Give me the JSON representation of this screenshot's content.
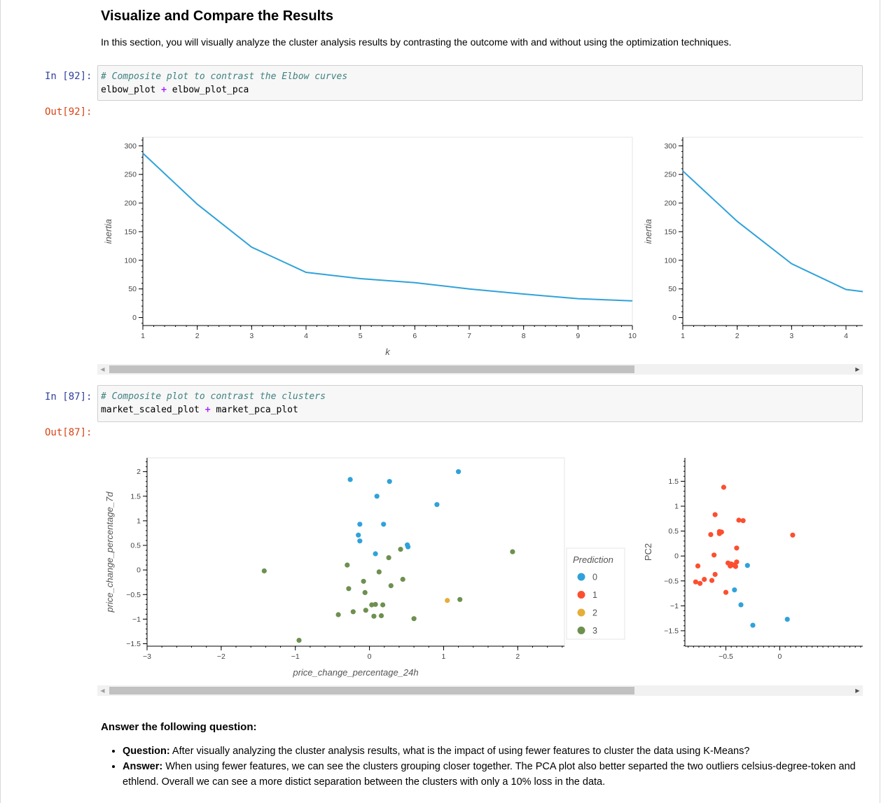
{
  "section": {
    "heading": "Visualize and Compare the Results",
    "intro": "In this section, you will visually analyze the cluster analysis results by contrasting the outcome with and without using the optimization techniques."
  },
  "cells": [
    {
      "in_prompt": "In [92]:",
      "out_prompt": "Out[92]:",
      "comment": "# Composite plot to contrast the Elbow curves",
      "code_left": "elbow_plot",
      "code_op": "+",
      "code_right": "elbow_plot_pca"
    },
    {
      "in_prompt": "In [87]:",
      "out_prompt": "Out[87]:",
      "comment": "# Composite plot to contrast the clusters",
      "code_left": "market_scaled_plot",
      "code_op": "+",
      "code_right": "market_pca_plot"
    }
  ],
  "answer": {
    "title": "Answer the following question:",
    "question_label": "Question:",
    "question_text": " After visually analyzing the cluster analysis results, what is the impact of using fewer features to cluster the data using K-Means?",
    "answer_label": "Answer:",
    "answer_text": " When using fewer features, we can see the clusters grouping closer together. The PCA plot also better separted the two outliers celsius-degree-token and ethlend. Overall we can see a more distict separation between the clusters with only a 10% loss in the data."
  },
  "colors": {
    "line": "#30a2da",
    "cluster_0": "#30a2da",
    "cluster_1": "#fc4f30",
    "cluster_2": "#e5ae38",
    "cluster_3": "#6d904f"
  },
  "chart_data": [
    {
      "type": "line",
      "xlabel": "k",
      "ylabel": "inertia",
      "x": [
        1,
        2,
        3,
        4,
        5,
        6,
        7,
        8,
        9,
        10
      ],
      "y": [
        287,
        198,
        123,
        79,
        68,
        61,
        50,
        41,
        33,
        29
      ],
      "xlim": [
        1,
        10
      ],
      "ylim": [
        -14,
        315
      ],
      "xticks": [
        "1",
        "2",
        "3",
        "4",
        "5",
        "6",
        "7",
        "8",
        "9",
        "10"
      ],
      "yticks": [
        "0",
        "50",
        "100",
        "150",
        "200",
        "250",
        "300"
      ]
    },
    {
      "type": "line",
      "xlabel": "",
      "ylabel": "inertia",
      "x": [
        1,
        2,
        3,
        4
      ],
      "y": [
        256,
        168,
        94,
        49
      ],
      "xlim": [
        1,
        10
      ],
      "ylim": [
        -14,
        315
      ],
      "xticks": [
        "1",
        "2",
        "3",
        "4"
      ],
      "yticks": [
        "0",
        "50",
        "100",
        "150",
        "200",
        "250",
        "300"
      ],
      "note_clipped": true
    },
    {
      "type": "scatter",
      "xlabel": "price_change_percentage_24h",
      "ylabel": "price_change_percentage_7d",
      "xlim": [
        -3,
        2.63
      ],
      "ylim": [
        -1.55,
        2.28
      ],
      "xticks": [
        "−3",
        "−2",
        "−1",
        "0",
        "1",
        "2"
      ],
      "yticks": [
        "−1.5",
        "−1",
        "−0.5",
        "0",
        "0.5",
        "1",
        "1.5",
        "2"
      ],
      "legend_title": "Prediction",
      "legend": [
        "0",
        "1",
        "2",
        "3"
      ],
      "series": [
        {
          "name": "0",
          "points": [
            [
              -0.26,
              1.84
            ],
            [
              0.27,
              1.8
            ],
            [
              1.2,
              2.0
            ],
            [
              0.1,
              1.5
            ],
            [
              0.91,
              1.33
            ],
            [
              -0.13,
              0.93
            ],
            [
              0.19,
              0.93
            ],
            [
              -0.15,
              0.71
            ],
            [
              -0.13,
              0.59
            ],
            [
              0.51,
              0.51
            ],
            [
              0.52,
              0.47
            ],
            [
              0.08,
              0.33
            ]
          ]
        },
        {
          "name": "2",
          "points": [
            [
              1.05,
              -0.62
            ]
          ]
        },
        {
          "name": "3",
          "points": [
            [
              -1.42,
              -0.02
            ],
            [
              -0.3,
              0.1
            ],
            [
              0.26,
              0.25
            ],
            [
              0.42,
              0.42
            ],
            [
              1.93,
              0.37
            ],
            [
              0.13,
              -0.04
            ],
            [
              -0.08,
              -0.23
            ],
            [
              0.45,
              -0.19
            ],
            [
              0.29,
              -0.32
            ],
            [
              -0.28,
              -0.38
            ],
            [
              -0.06,
              -0.46
            ],
            [
              0.03,
              -0.71
            ],
            [
              0.08,
              -0.7
            ],
            [
              0.18,
              -0.71
            ],
            [
              1.22,
              -0.6
            ],
            [
              -0.05,
              -0.82
            ],
            [
              -0.22,
              -0.85
            ],
            [
              -0.42,
              -0.91
            ],
            [
              0.06,
              -0.94
            ],
            [
              0.16,
              -0.93
            ],
            [
              0.6,
              -0.99
            ],
            [
              -0.95,
              -1.43
            ]
          ]
        }
      ]
    },
    {
      "type": "scatter",
      "xlabel": "",
      "ylabel": "PC2",
      "xlim": [
        -0.88,
        0.77
      ],
      "ylim": [
        -1.81,
        1.97
      ],
      "xticks": [
        "−0.5",
        "0"
      ],
      "yticks": [
        "−1.5",
        "−1",
        "−0.5",
        "0",
        "0.5",
        "1",
        "1.5"
      ],
      "series": [
        {
          "name": "0",
          "points": [
            [
              -0.3,
              -0.19
            ],
            [
              -0.42,
              -0.68
            ],
            [
              -0.36,
              -0.98
            ],
            [
              -0.25,
              -1.39
            ],
            [
              0.07,
              -1.27
            ]
          ]
        },
        {
          "name": "1",
          "points": [
            [
              -0.52,
              1.38
            ],
            [
              -0.6,
              0.83
            ],
            [
              -0.64,
              0.43
            ],
            [
              -0.56,
              0.49
            ],
            [
              -0.54,
              0.48
            ],
            [
              -0.56,
              0.45
            ],
            [
              -0.38,
              0.72
            ],
            [
              -0.34,
              0.71
            ],
            [
              0.12,
              0.42
            ],
            [
              -0.4,
              0.16
            ],
            [
              -0.61,
              0.02
            ],
            [
              -0.4,
              -0.12
            ],
            [
              -0.48,
              -0.14
            ],
            [
              -0.45,
              -0.16
            ],
            [
              -0.43,
              -0.18
            ],
            [
              -0.46,
              -0.2
            ],
            [
              -0.41,
              -0.21
            ],
            [
              -0.76,
              -0.2
            ],
            [
              -0.78,
              -0.52
            ],
            [
              -0.74,
              -0.55
            ],
            [
              -0.7,
              -0.47
            ],
            [
              -0.63,
              -0.49
            ],
            [
              -0.6,
              -0.37
            ],
            [
              -0.5,
              -0.73
            ]
          ]
        }
      ]
    }
  ]
}
